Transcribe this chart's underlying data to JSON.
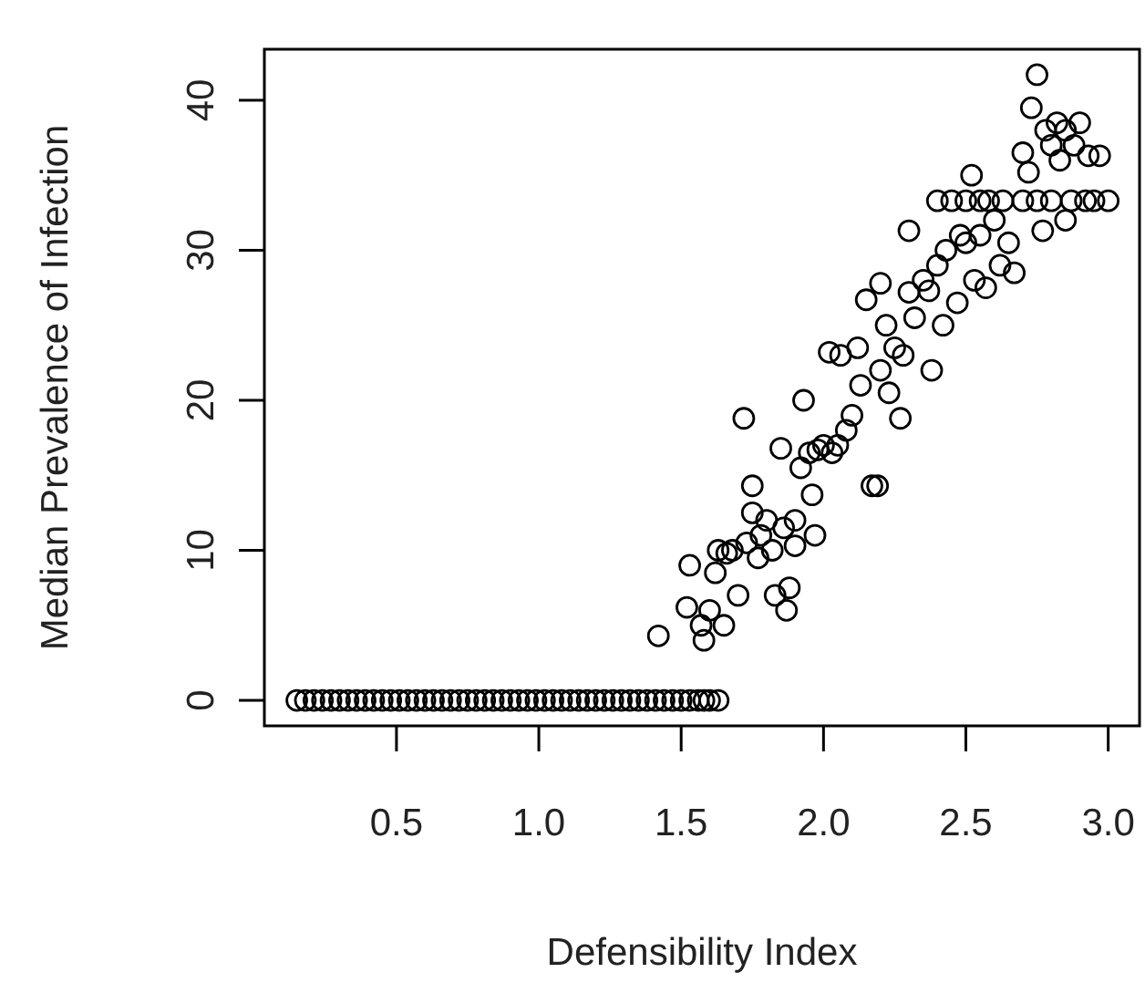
{
  "chart_data": {
    "type": "scatter",
    "xlabel": "Defensibility Index",
    "ylabel": "Median Prevalence of Infection",
    "marker": "circle",
    "grid": false,
    "xlim": [
      0.036,
      3.11
    ],
    "ylim": [
      -1.7,
      43.4
    ],
    "xticks": [
      {
        "value": 0.5,
        "label": "0.5"
      },
      {
        "value": 1,
        "label": "1.0"
      },
      {
        "value": 1.5,
        "label": "1.5"
      },
      {
        "value": 2,
        "label": "2.0"
      },
      {
        "value": 2.5,
        "label": "2.5"
      },
      {
        "value": 3,
        "label": "3.0"
      }
    ],
    "yticks": [
      0,
      10,
      20,
      30,
      40
    ],
    "series": [
      {
        "color": "#000000",
        "x": [
          0.15,
          0.18,
          0.21,
          0.24,
          0.27,
          0.3,
          0.33,
          0.36,
          0.39,
          0.42,
          0.45,
          0.48,
          0.51,
          0.54,
          0.57,
          0.6,
          0.63,
          0.66,
          0.69,
          0.72,
          0.75,
          0.78,
          0.81,
          0.84,
          0.87,
          0.9,
          0.93,
          0.96,
          0.99,
          1.02,
          1.05,
          1.08,
          1.11,
          1.14,
          1.17,
          1.2,
          1.23,
          1.26,
          1.29,
          1.32,
          1.35,
          1.38,
          1.41,
          1.44,
          1.47,
          1.5,
          1.53,
          1.56,
          1.58,
          1.6,
          1.63,
          1.42,
          1.52,
          1.53,
          1.57,
          1.58,
          1.6,
          1.62,
          1.63,
          1.65,
          1.66,
          1.68,
          1.7,
          1.72,
          1.73,
          1.75,
          1.75,
          1.77,
          1.78,
          1.8,
          1.82,
          1.83,
          1.85,
          1.86,
          1.87,
          1.88,
          1.9,
          1.9,
          1.92,
          1.93,
          1.95,
          1.96,
          1.97,
          1.98,
          2.0,
          2.02,
          2.03,
          2.05,
          2.06,
          2.08,
          2.1,
          2.12,
          2.13,
          2.15,
          2.17,
          2.19,
          2.2,
          2.2,
          2.22,
          2.23,
          2.25,
          2.27,
          2.28,
          2.3,
          2.3,
          2.32,
          2.35,
          2.37,
          2.38,
          2.4,
          2.4,
          2.42,
          2.43,
          2.45,
          2.47,
          2.48,
          2.5,
          2.5,
          2.52,
          2.53,
          2.55,
          2.55,
          2.57,
          2.58,
          2.6,
          2.62,
          2.63,
          2.65,
          2.67,
          2.7,
          2.7,
          2.72,
          2.73,
          2.75,
          2.75,
          2.77,
          2.78,
          2.8,
          2.8,
          2.82,
          2.83,
          2.85,
          2.85,
          2.87,
          2.88,
          2.9,
          2.92,
          2.93,
          2.95,
          2.97,
          3.0
        ],
        "values": [
          0,
          0,
          0,
          0,
          0,
          0,
          0,
          0,
          0,
          0,
          0,
          0,
          0,
          0,
          0,
          0,
          0,
          0,
          0,
          0,
          0,
          0,
          0,
          0,
          0,
          0,
          0,
          0,
          0,
          0,
          0,
          0,
          0,
          0,
          0,
          0,
          0,
          0,
          0,
          0,
          0,
          0,
          0,
          0,
          0,
          0,
          0,
          0,
          0,
          0,
          0,
          4.3,
          6.2,
          9,
          5,
          4,
          6,
          8.5,
          10,
          5,
          9.8,
          10,
          7,
          18.8,
          10.5,
          12.5,
          14.3,
          9.5,
          11,
          12,
          10,
          7,
          16.8,
          11.5,
          6,
          7.5,
          10.3,
          12,
          15.5,
          20,
          16.5,
          13.7,
          11,
          16.7,
          17,
          23.2,
          16.5,
          17,
          23,
          18,
          19,
          23.5,
          21,
          26.7,
          14.3,
          14.3,
          22,
          27.8,
          25,
          20.5,
          23.5,
          18.8,
          23,
          27.2,
          31.3,
          25.5,
          28,
          27.3,
          22,
          33.3,
          29,
          25,
          30,
          33.3,
          26.5,
          31,
          33.3,
          30.5,
          35,
          28,
          33.3,
          31,
          27.5,
          33.3,
          32,
          29,
          33.3,
          30.5,
          28.5,
          33.3,
          36.5,
          35.2,
          39.5,
          41.7,
          33.3,
          31.3,
          38,
          37,
          33.3,
          38.5,
          36,
          32,
          38,
          33.3,
          37,
          38.5,
          33.3,
          36.3,
          33.3,
          36.3,
          33.3
        ]
      }
    ]
  }
}
